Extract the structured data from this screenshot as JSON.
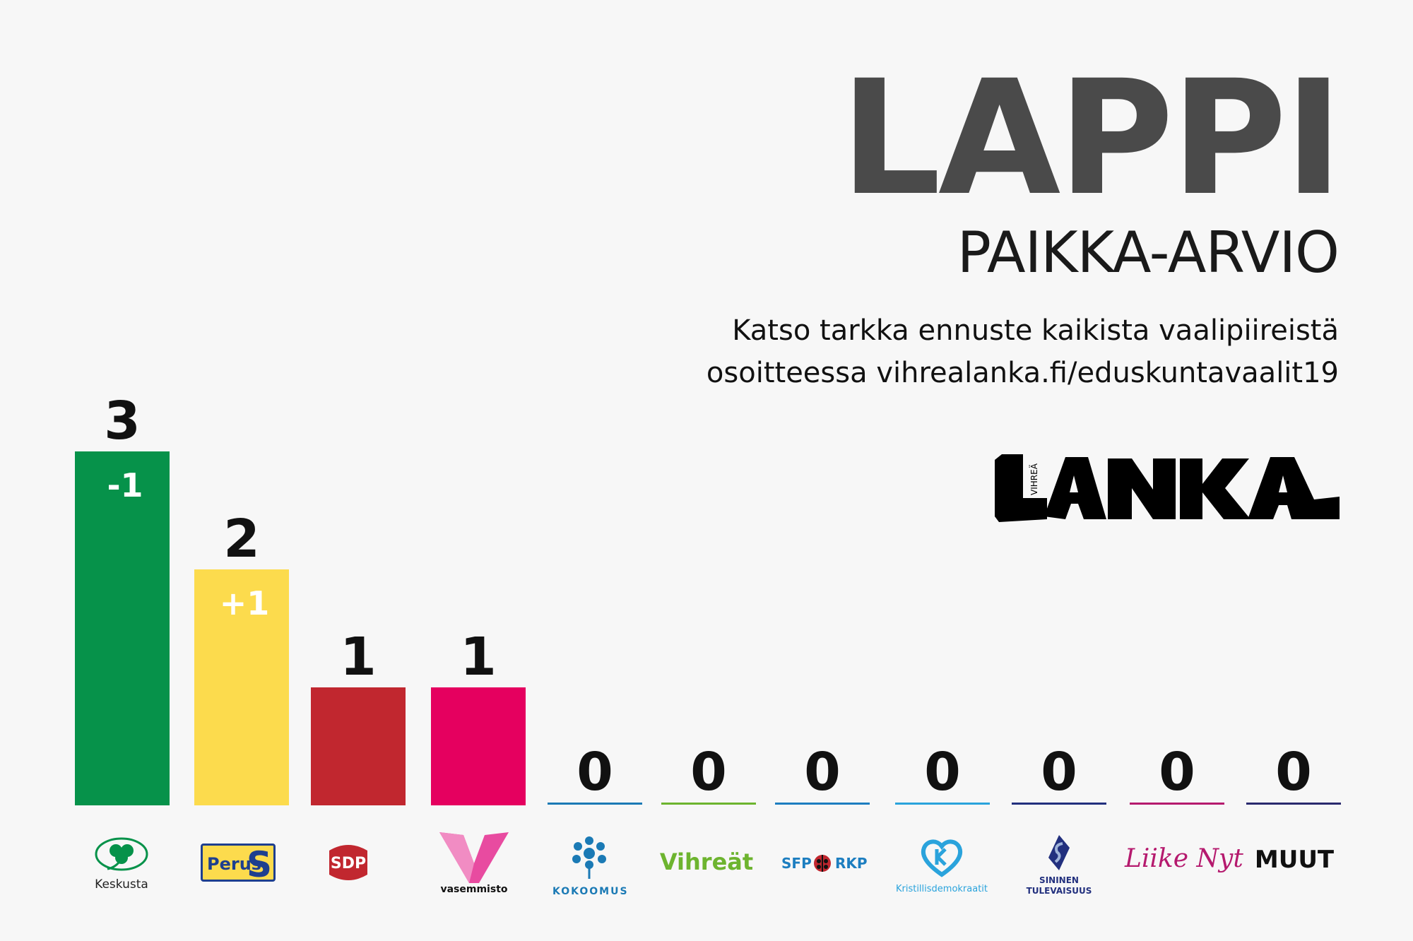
{
  "header": {
    "title": "LAPPI",
    "subtitle": "PAIKKA-ARVIO",
    "note_line1": "Katso tarkka ennuste kaikista vaalipiireistä",
    "note_line2": "osoitteessa vihrealanka.fi/eduskuntavaalit19",
    "logo_small": "VIHREÄ",
    "logo_main": "LANKA"
  },
  "colors": {
    "keskusta": "#06924a",
    "perus": "#fcdb4d",
    "sdp": "#c1272f",
    "vasemmisto": "#e5005f",
    "kokoomus": "#1b7ab5",
    "vihreat": "#6db42f",
    "rkp": "#1d7ec0",
    "kd": "#2aa3dc",
    "sininen": "#22307e",
    "liike_nyt": "#b51a6e",
    "muut": "#2a2a6e"
  },
  "chart_data": {
    "type": "bar",
    "categories": [
      "Keskusta",
      "Perussuomalaiset",
      "SDP",
      "Vasemmisto",
      "Kokoomus",
      "Vihreät",
      "SFP RKP",
      "Kristillisdemokraatit",
      "Sininen tulevaisuus",
      "Liike Nyt",
      "MUUT"
    ],
    "values": [
      3,
      2,
      1,
      1,
      0,
      0,
      0,
      0,
      0,
      0,
      0
    ],
    "value_labels": [
      "3",
      "2",
      "1",
      "1",
      "0",
      "0",
      "0",
      "0",
      "0",
      "0",
      "0"
    ],
    "change_labels": [
      "-1",
      "+1",
      "",
      "",
      "",
      "",
      "",
      "",
      "",
      "",
      ""
    ],
    "ylim": [
      0,
      3
    ],
    "grid": false
  },
  "party_labels": {
    "keskusta": "Keskusta",
    "perus_a": "Perus",
    "perus_b": "S",
    "sdp": "SDP",
    "vasemmisto": "vasemmisto",
    "kokoomus": "KOKOOMUS",
    "vihreat": "Vihreät",
    "rkp_a": "SFP",
    "rkp_b": "RKP",
    "kd": "Kristillisdemokraatit",
    "sininen_a": "SININEN",
    "sininen_b": "TULEVAISUUS",
    "liike_nyt": "Liike Nyt",
    "muut": "MUUT"
  }
}
